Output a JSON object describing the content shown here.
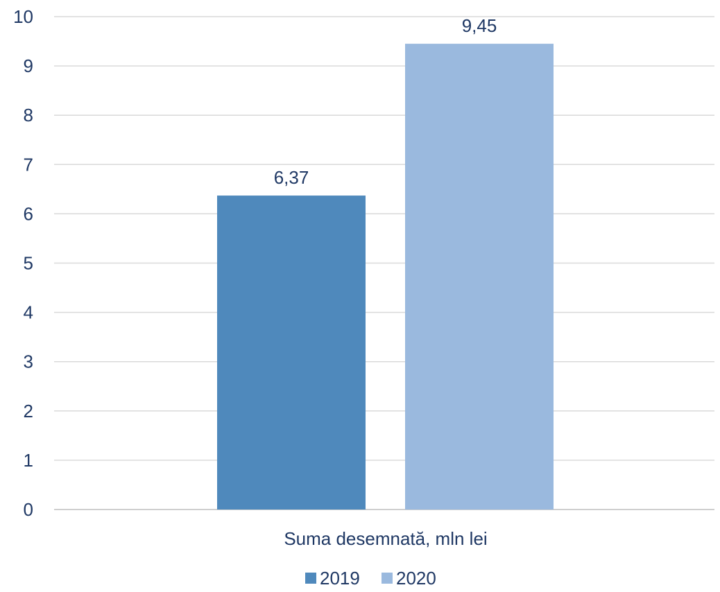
{
  "chart_data": {
    "type": "bar",
    "categories": [
      "Suma desemnată, mln lei"
    ],
    "series": [
      {
        "name": "2019",
        "values": [
          6.37
        ],
        "value_labels": [
          "6,37"
        ],
        "color": "#4f89bc"
      },
      {
        "name": "2020",
        "values": [
          9.45
        ],
        "value_labels": [
          "9,45"
        ],
        "color": "#9ab9de"
      }
    ],
    "ylim": [
      0,
      10
    ],
    "yticks": [
      "0",
      "1",
      "2",
      "3",
      "4",
      "5",
      "6",
      "7",
      "8",
      "9",
      "10"
    ],
    "grid": true,
    "legend_position": "bottom",
    "text_color": "#1f3864"
  }
}
